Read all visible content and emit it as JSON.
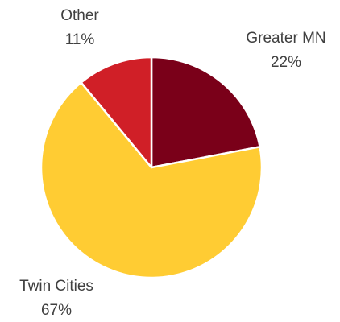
{
  "chart_data": {
    "type": "pie",
    "categories": [
      "Greater MN",
      "Twin Cities",
      "Other"
    ],
    "values": [
      22,
      67,
      11
    ],
    "value_labels": [
      "22%",
      "67%",
      "11%"
    ],
    "colors": [
      "#7a0019",
      "#ffcc33",
      "#d01f27"
    ]
  }
}
